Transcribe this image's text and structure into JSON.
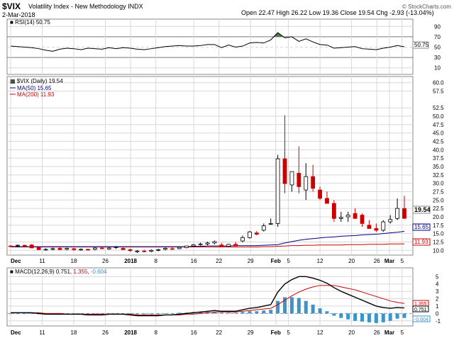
{
  "header": {
    "symbol": "$VIX",
    "name": "Volatility Index - New Methodology",
    "exchange": "INDX",
    "date": "2-Mar-2018",
    "ohlc": "Open 22.47  High 26.22  Low 19.36  Close 19.54  Chg -2.93 (-13.04%)",
    "copyright": "© StockCharts.com"
  },
  "rsi": {
    "label": "RSI(14) 50.75",
    "value_tag": "50.75",
    "ticks": [
      "90",
      "70",
      "50",
      "30",
      "10"
    ]
  },
  "price": {
    "label": "$VIX (Daily) 19.54",
    "ma50_label": "MA(50) 15.65",
    "ma200_label": "MA(200) 11.93",
    "close_tag": "19.54",
    "ma50_tag": "15.65",
    "ma200_tag": "11.93",
    "ticks": [
      "60.0",
      "57.5",
      "52.5",
      "50.0",
      "47.5",
      "45.0",
      "42.5",
      "40.0",
      "37.5",
      "35.0",
      "32.5",
      "30.0",
      "27.5",
      "25.0",
      "22.5",
      "20.0",
      "17.5",
      "15.0",
      "12.5",
      "10.0"
    ]
  },
  "macd": {
    "label": "MACD(12,26,9)",
    "v1": "0.751",
    "v2": "1.355",
    "v3": "-0.604",
    "ticks": [
      "5",
      "4",
      "3",
      "2",
      "1",
      "0",
      "-1"
    ],
    "tag1": "1.355",
    "tag2": "0.751",
    "tag3": "-0.604"
  },
  "xaxis": {
    "labels": [
      "Dec",
      "11",
      "18",
      "26",
      "2018",
      "8",
      "16",
      "22",
      "29",
      "Feb",
      "5",
      "12",
      "20",
      "26",
      "Mar",
      "5"
    ]
  },
  "colors": {
    "up": "#ffffff",
    "down": "#cc0000",
    "ma50": "#000080",
    "ma200": "#cc0000",
    "macd_line": "#000000",
    "signal_line": "#cc0000",
    "hist": "#3d94c8",
    "rsi_fill": "#4a7a4a",
    "grid": "#d8d8d8"
  },
  "chart_data": [
    {
      "type": "candlestick",
      "title": "$VIX (Daily) 19.54",
      "ylim": [
        9,
        61
      ],
      "series": [
        {
          "name": "MA(50)",
          "values": [
            11.2,
            11.1,
            11.1,
            11.1,
            11.1,
            11.1,
            11.1,
            11.1,
            11.1,
            11.1,
            11.1,
            11.1,
            11.1,
            11.1,
            11.1,
            11.1,
            11.1,
            11.1,
            11.1,
            11.1,
            11.1,
            11.1,
            11.1,
            11.1,
            11.1,
            11.1,
            11.2,
            11.2,
            11.3,
            11.3,
            11.3,
            11.3,
            11.4,
            11.4,
            11.4,
            11.4,
            11.5,
            11.6,
            11.7,
            12.2,
            12.6,
            13.0,
            13.3,
            13.5,
            13.7,
            13.9,
            14.0,
            14.2,
            14.3,
            14.4,
            14.6,
            14.7,
            14.8,
            15.0,
            15.2,
            15.4,
            15.65
          ]
        },
        {
          "name": "MA(200)",
          "values": [
            11.0,
            11.0,
            11.0,
            11.0,
            11.0,
            11.0,
            11.0,
            11.0,
            11.0,
            11.0,
            11.0,
            11.0,
            11.0,
            11.0,
            11.0,
            11.0,
            11.0,
            11.0,
            11.0,
            11.0,
            11.0,
            11.0,
            11.0,
            11.0,
            11.0,
            11.0,
            11.0,
            11.0,
            11.0,
            11.0,
            11.0,
            11.0,
            11.0,
            11.0,
            11.0,
            11.0,
            11.1,
            11.1,
            11.2,
            11.3,
            11.4,
            11.4,
            11.5,
            11.5,
            11.6,
            11.6,
            11.6,
            11.6,
            11.7,
            11.7,
            11.7,
            11.8,
            11.8,
            11.8,
            11.9,
            11.9,
            11.93
          ]
        }
      ],
      "ohlc": [
        [
          11.3,
          11.6,
          11.0,
          11.2
        ],
        [
          11.3,
          11.8,
          10.9,
          11.5
        ],
        [
          11.5,
          11.7,
          11.1,
          11.2
        ],
        [
          11.6,
          11.9,
          10.9,
          10.7
        ],
        [
          10.8,
          11.0,
          10.1,
          10.2
        ],
        [
          10.3,
          10.6,
          9.9,
          10.3
        ],
        [
          10.4,
          10.8,
          10.0,
          10.5
        ],
        [
          10.6,
          11.0,
          10.1,
          10.2
        ],
        [
          10.3,
          10.8,
          10.0,
          10.6
        ],
        [
          10.5,
          10.7,
          9.9,
          10.2
        ],
        [
          10.2,
          10.6,
          9.9,
          10.3
        ],
        [
          10.3,
          10.5,
          9.9,
          10.2
        ],
        [
          10.3,
          10.9,
          10.0,
          10.7
        ],
        [
          10.7,
          11.1,
          10.3,
          10.5
        ],
        [
          10.4,
          10.9,
          10.2,
          10.7
        ],
        [
          10.8,
          11.3,
          10.4,
          11.0
        ],
        [
          10.6,
          11.2,
          10.3,
          10.2
        ],
        [
          10.2,
          10.5,
          9.6,
          9.9
        ],
        [
          9.8,
          10.1,
          9.2,
          9.8
        ],
        [
          9.8,
          10.2,
          9.4,
          9.6
        ],
        [
          9.7,
          10.3,
          9.4,
          10.0
        ],
        [
          10.0,
          10.5,
          9.7,
          10.2
        ],
        [
          10.3,
          10.9,
          10.0,
          10.6
        ],
        [
          10.5,
          11.0,
          10.1,
          10.4
        ],
        [
          10.5,
          11.1,
          10.3,
          10.9
        ],
        [
          10.8,
          11.4,
          10.6,
          11.3
        ],
        [
          11.3,
          11.9,
          11.0,
          11.7
        ],
        [
          11.7,
          12.3,
          11.4,
          11.9
        ],
        [
          11.9,
          12.6,
          11.5,
          12.2
        ],
        [
          12.2,
          12.9,
          11.8,
          12.6
        ],
        [
          11.6,
          12.2,
          11.2,
          11.2
        ],
        [
          11.2,
          11.9,
          10.9,
          11.8
        ],
        [
          11.8,
          12.5,
          11.5,
          11.3
        ],
        [
          12.8,
          14.4,
          12.4,
          13.8
        ],
        [
          13.8,
          15.8,
          13.5,
          15.5
        ],
        [
          15.2,
          15.8,
          14.5,
          14.8
        ],
        [
          16.0,
          18.0,
          15.6,
          17.3
        ],
        [
          17.9,
          19.5,
          17.6,
          18.0
        ],
        [
          18.0,
          38.5,
          17.0,
          37.3
        ],
        [
          37.3,
          50.3,
          27.0,
          29.9
        ],
        [
          29.5,
          33.5,
          27.5,
          33.5
        ],
        [
          33.0,
          41.0,
          27.0,
          29.0
        ],
        [
          28.0,
          36.0,
          25.0,
          32.0
        ],
        [
          32.0,
          35.5,
          27.5,
          28.5
        ],
        [
          28.0,
          29.0,
          25.0,
          25.5
        ],
        [
          25.5,
          27.5,
          24.0,
          24.0
        ],
        [
          24.0,
          25.0,
          18.5,
          19.5
        ],
        [
          19.5,
          21.5,
          18.5,
          19.8
        ],
        [
          20.0,
          21.5,
          18.5,
          20.5
        ],
        [
          21.0,
          22.5,
          19.5,
          19.5
        ],
        [
          20.5,
          21.0,
          17.0,
          18.0
        ],
        [
          17.5,
          19.0,
          16.5,
          16.5
        ],
        [
          16.5,
          18.0,
          15.5,
          16.0
        ],
        [
          16.0,
          19.0,
          15.5,
          18.5
        ],
        [
          18.5,
          20.5,
          18.0,
          19.2
        ],
        [
          19.5,
          25.5,
          19.0,
          22.5
        ],
        [
          22.47,
          26.22,
          19.36,
          19.54
        ]
      ]
    },
    {
      "type": "line",
      "title": "RSI(14) 50.75",
      "ylim": [
        0,
        100
      ],
      "series": [
        {
          "values": [
            52,
            51,
            50,
            49,
            47,
            44,
            42,
            46,
            48,
            47,
            45,
            48,
            47,
            46,
            49,
            47,
            49,
            48,
            46,
            45,
            47,
            49,
            51,
            52,
            53,
            52,
            52,
            53,
            55,
            55,
            49,
            54,
            50,
            52,
            58,
            59,
            58,
            64,
            78,
            68,
            70,
            61,
            66,
            60,
            55,
            54,
            48,
            49,
            50,
            51,
            47,
            46,
            45,
            48,
            50,
            53,
            50.75
          ]
        }
      ]
    },
    {
      "type": "line",
      "title": "MACD(12,26,9)",
      "ylim": [
        -1.5,
        5.8
      ],
      "series": [
        {
          "name": "MACD",
          "values": [
            0.1,
            0.1,
            0.1,
            0.1,
            0.0,
            -0.1,
            -0.1,
            -0.1,
            -0.1,
            -0.1,
            -0.1,
            -0.2,
            -0.2,
            -0.2,
            -0.1,
            -0.1,
            -0.1,
            -0.2,
            -0.3,
            -0.3,
            -0.3,
            -0.3,
            -0.2,
            -0.2,
            -0.1,
            0.0,
            0.1,
            0.2,
            0.3,
            0.4,
            0.3,
            0.3,
            0.3,
            0.5,
            0.7,
            0.8,
            1.0,
            1.2,
            2.9,
            4.0,
            4.6,
            5.0,
            5.0,
            4.8,
            4.5,
            4.1,
            3.5,
            3.0,
            2.6,
            2.2,
            1.8,
            1.4,
            1.0,
            0.8,
            0.7,
            0.8,
            0.751
          ]
        },
        {
          "name": "Signal",
          "values": [
            0.1,
            0.1,
            0.1,
            0.1,
            0.1,
            0.0,
            0.0,
            0.0,
            -0.1,
            -0.1,
            -0.1,
            -0.1,
            -0.1,
            -0.1,
            -0.1,
            -0.1,
            -0.1,
            -0.1,
            -0.2,
            -0.2,
            -0.2,
            -0.2,
            -0.2,
            -0.2,
            -0.2,
            -0.1,
            -0.1,
            0.0,
            0.1,
            0.2,
            0.2,
            0.2,
            0.2,
            0.3,
            0.4,
            0.5,
            0.6,
            0.7,
            1.2,
            1.8,
            2.4,
            2.9,
            3.3,
            3.6,
            3.8,
            3.8,
            3.8,
            3.6,
            3.4,
            3.2,
            2.9,
            2.6,
            2.3,
            2.0,
            1.7,
            1.5,
            1.355
          ]
        },
        {
          "name": "Histogram",
          "values": [
            0.0,
            0.0,
            0.0,
            0.0,
            -0.1,
            -0.1,
            -0.1,
            -0.1,
            0.0,
            0.0,
            0.0,
            -0.1,
            -0.1,
            -0.1,
            0.0,
            0.0,
            0.0,
            -0.1,
            -0.1,
            -0.1,
            -0.1,
            -0.1,
            0.0,
            0.0,
            0.1,
            0.1,
            0.2,
            0.2,
            0.2,
            0.2,
            0.1,
            0.1,
            0.1,
            0.2,
            0.3,
            0.3,
            0.4,
            0.5,
            1.7,
            2.2,
            2.2,
            2.1,
            1.7,
            1.2,
            0.7,
            0.3,
            -0.3,
            -0.6,
            -0.8,
            -1.0,
            -1.1,
            -1.2,
            -1.3,
            -1.2,
            -1.0,
            -0.7,
            -0.604
          ]
        }
      ]
    }
  ]
}
